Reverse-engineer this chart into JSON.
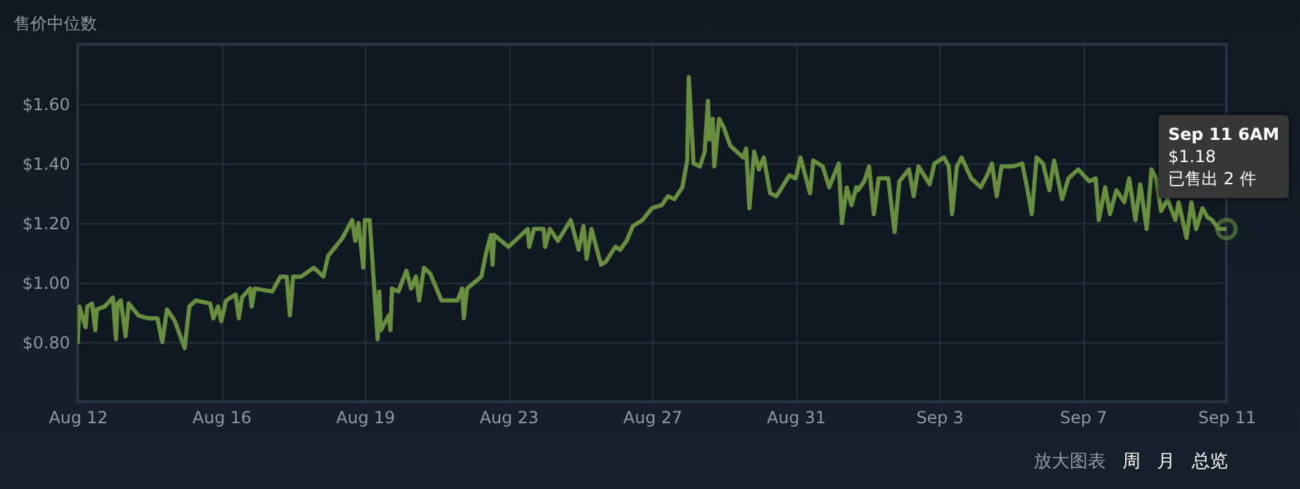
{
  "chart_data": {
    "type": "line",
    "title": "售价中位数",
    "x": [
      "--08-12T06:00",
      "--08-12T07:00",
      "--08-12T11:00",
      "--08-12T12:00",
      "--08-12T15:00",
      "--08-12T17:00",
      "--08-12T18:00",
      "--08-12T23:00",
      "--08-13T04:00",
      "--08-13T06:00",
      "--08-13T07:00",
      "--08-13T09:00",
      "--08-13T12:00",
      "--08-13T14:00",
      "--08-13T20:00",
      "--08-14T02:00",
      "--08-14T08:00",
      "--08-14T11:00",
      "--08-14T14:00",
      "--08-14T19:00",
      "--08-15T01:00",
      "--08-15T04:00",
      "--08-15T08:00",
      "--08-15T17:00",
      "--08-15T19:00",
      "--08-15T22:00",
      "--08-16T00:00",
      "--08-16T03:00",
      "--08-16T09:00",
      "--08-16T11:00",
      "--08-16T13:00",
      "--08-16T18:00",
      "--08-16T19:00",
      "--08-16T21:00",
      "--08-17T08:00",
      "--08-17T13:00",
      "--08-17T17:00",
      "--08-17T19:00",
      "--08-17T21:00",
      "--08-18T02:00",
      "--08-18T10:00",
      "--08-18T16:00",
      "--08-18T19:00",
      "--08-19T04:00",
      "--08-19T10:00",
      "--08-19T12:00",
      "--08-19T14:00",
      "--08-19T17:00",
      "--08-19T18:00",
      "--08-19T21:00",
      "--08-20T02:00",
      "--08-20T03:00",
      "--08-20T04:00",
      "--08-20T09:00",
      "--08-20T10:00",
      "--08-20T11:00",
      "--08-20T15:00",
      "--08-20T20:00",
      "--08-20T23:00",
      "--08-21T02:00",
      "--08-21T04:00",
      "--08-21T07:00",
      "--08-21T11:00",
      "--08-21T18:00",
      "--08-22T04:00",
      "--08-22T07:00",
      "--08-22T08:00",
      "--08-22T10:00",
      "--08-22T19:00",
      "--08-22T22:00",
      "--08-23T01:00",
      "--08-23T02:00",
      "--08-23T03:00",
      "--08-23T12:00",
      "--08-24T00:00",
      "--08-24T01:00",
      "--08-24T04:00",
      "--08-24T10:00",
      "--08-24T11:00",
      "--08-24T14:00",
      "--08-24T19:00",
      "--08-25T03:00",
      "--08-25T08:00",
      "--08-25T11:00",
      "--08-25T13:00",
      "--08-25T16:00",
      "--08-25T22:00",
      "--08-26T01:00",
      "--08-26T07:00",
      "--08-26T10:00",
      "--08-26T14:00",
      "--08-26T18:00",
      "--08-27T00:00",
      "--08-27T06:00",
      "--08-27T12:00",
      "--08-27T16:00",
      "--08-27T20:00",
      "--08-28T01:00",
      "--08-28T04:00",
      "--08-28T05:00",
      "--08-28T08:00",
      "--08-28T12:00",
      "--08-28T15:00",
      "--08-28T17:00",
      "--08-28T18:00",
      "--08-28T20:00",
      "--08-28T21:00",
      "--08-29T00:00",
      "--08-29T03:00",
      "--08-29T07:00",
      "--08-29T15:00",
      "--08-29T17:00",
      "--08-29T19:00",
      "--08-29T22:00",
      "--08-30T01:00",
      "--08-30T04:00",
      "--08-30T08:00",
      "--08-30T12:00",
      "--08-30T20:00",
      "--08-31T00:00",
      "--08-31T03:00",
      "--08-31T09:00",
      "--08-31T11:00",
      "--08-31T17:00",
      "--08-31T21:00",
      "--09-01T03:00",
      "--09-01T05:00",
      "--09-01T08:00",
      "--09-01T11:00",
      "--09-01T14:00",
      "--09-01T15:00",
      "--09-01T19:00",
      "--09-01T22:00",
      "--09-02T01:00",
      "--09-02T04:00",
      "--09-02T10:00",
      "--09-02T14:00",
      "--09-02T17:00",
      "--09-02T23:00",
      "--09-03T02:00",
      "--09-03T05:00",
      "--09-03T12:00",
      "--09-03T15:00",
      "--09-03T21:00",
      "--09-04T00:00",
      "--09-04T02:00",
      "--09-04T05:00",
      "--09-04T08:00",
      "--09-04T14:00",
      "--09-04T20:00",
      "--09-05T00:00",
      "--09-05T03:00",
      "--09-05T06:00",
      "--09-05T09:00",
      "--09-05T16:00",
      "--09-05T22:00",
      "--09-06T01:00",
      "--09-06T04:00",
      "--09-06T07:00",
      "--09-06T11:00",
      "--09-06T15:00",
      "--09-06T18:00",
      "--09-06T23:00",
      "--09-07T03:00",
      "--09-07T09:00",
      "--09-07T16:00",
      "--09-07T20:00",
      "--09-07T22:00",
      "--09-08T02:00",
      "--09-08T05:00",
      "--09-08T09:00",
      "--09-08T14:00",
      "--09-08T17:00",
      "--09-08T21:00",
      "--09-09T00:00",
      "--09-09T04:00",
      "--09-09T07:00",
      "--09-09T10:00",
      "--09-09T13:00",
      "--09-09T17:00",
      "--09-09T22:00",
      "--09-10T00:00",
      "--09-10T05:00",
      "--09-10T08:00",
      "--09-10T11:00",
      "--09-10T15:00",
      "--09-10T18:00",
      "--09-10T21:00",
      "--09-11T01:00",
      "--09-11T06:00"
    ],
    "series": [
      {
        "color": "#688f3e",
        "values": [
          0.8,
          0.92,
          0.85,
          0.92,
          0.93,
          0.84,
          0.91,
          0.92,
          0.95,
          0.81,
          0.93,
          0.94,
          0.82,
          0.93,
          0.89,
          0.88,
          0.88,
          0.8,
          0.91,
          0.87,
          0.78,
          0.92,
          0.94,
          0.93,
          0.88,
          0.92,
          0.87,
          0.94,
          0.96,
          0.88,
          0.95,
          0.98,
          0.92,
          0.98,
          0.97,
          1.02,
          1.02,
          0.89,
          1.02,
          1.02,
          1.05,
          1.02,
          1.09,
          1.15,
          1.21,
          1.14,
          1.2,
          1.05,
          1.21,
          1.21,
          0.81,
          0.97,
          0.84,
          0.89,
          0.84,
          0.98,
          0.97,
          1.04,
          0.98,
          1.02,
          0.94,
          1.05,
          1.03,
          0.94,
          0.94,
          0.98,
          0.88,
          0.98,
          1.02,
          1.1,
          1.16,
          1.06,
          1.16,
          1.12,
          1.18,
          1.12,
          1.18,
          1.18,
          1.12,
          1.18,
          1.14,
          1.21,
          1.11,
          1.19,
          1.08,
          1.18,
          1.06,
          1.07,
          1.12,
          1.11,
          1.14,
          1.19,
          1.21,
          1.25,
          1.26,
          1.29,
          1.28,
          1.32,
          1.41,
          1.69,
          1.4,
          1.39,
          1.44,
          1.61,
          1.48,
          1.55,
          1.39,
          1.55,
          1.52,
          1.46,
          1.42,
          1.45,
          1.25,
          1.44,
          1.38,
          1.42,
          1.3,
          1.29,
          1.36,
          1.35,
          1.42,
          1.3,
          1.41,
          1.39,
          1.32,
          1.4,
          1.2,
          1.32,
          1.26,
          1.32,
          1.31,
          1.34,
          1.39,
          1.23,
          1.35,
          1.35,
          1.17,
          1.34,
          1.38,
          1.29,
          1.39,
          1.33,
          1.4,
          1.42,
          1.39,
          1.23,
          1.39,
          1.42,
          1.35,
          1.32,
          1.36,
          1.4,
          1.29,
          1.39,
          1.39,
          1.4,
          1.32,
          1.23,
          1.42,
          1.4,
          1.31,
          1.41,
          1.28,
          1.35,
          1.38,
          1.34,
          1.35,
          1.21,
          1.32,
          1.23,
          1.31,
          1.27,
          1.35,
          1.21,
          1.33,
          1.18,
          1.38,
          1.35,
          1.24,
          1.28,
          1.21,
          1.27,
          1.15,
          1.27,
          1.18,
          1.25,
          1.22,
          1.21,
          1.18,
          1.18
        ]
      }
    ],
    "xlim": [
      "--08-12T06:00",
      "--09-11T06:00"
    ],
    "xticks": [
      {
        "value": "--08-12T06:00",
        "label": "Aug 12"
      },
      {
        "value": "--08-16T00:00",
        "label": "Aug 16"
      },
      {
        "value": "--08-19T18:00",
        "label": "Aug 19"
      },
      {
        "value": "--08-23T12:00",
        "label": "Aug 23"
      },
      {
        "value": "--08-27T06:00",
        "label": "Aug 27"
      },
      {
        "value": "--08-31T00:00",
        "label": "Aug 31"
      },
      {
        "value": "--09-03T18:00",
        "label": "Sep 3"
      },
      {
        "value": "--09-07T12:00",
        "label": "Sep 7"
      },
      {
        "value": "--09-11T06:00",
        "label": "Sep 11"
      }
    ],
    "ylim": [
      0.6,
      1.8
    ],
    "yticks": [
      {
        "value": 0.8,
        "label": "$0.80"
      },
      {
        "value": 1.0,
        "label": "$1.00"
      },
      {
        "value": 1.2,
        "label": "$1.20"
      },
      {
        "value": 1.4,
        "label": "$1.40"
      },
      {
        "value": 1.6,
        "label": "$1.60"
      }
    ],
    "grid": true,
    "marker": "none",
    "line_style": "solid",
    "annotations": [
      {
        "text": "Sep 11 6AM\n$1.18\n已售出 2 件",
        "x": "--09-11T06:00",
        "y": 1.18
      },
      "放大图表",
      "周",
      "月",
      "总览"
    ]
  }
}
